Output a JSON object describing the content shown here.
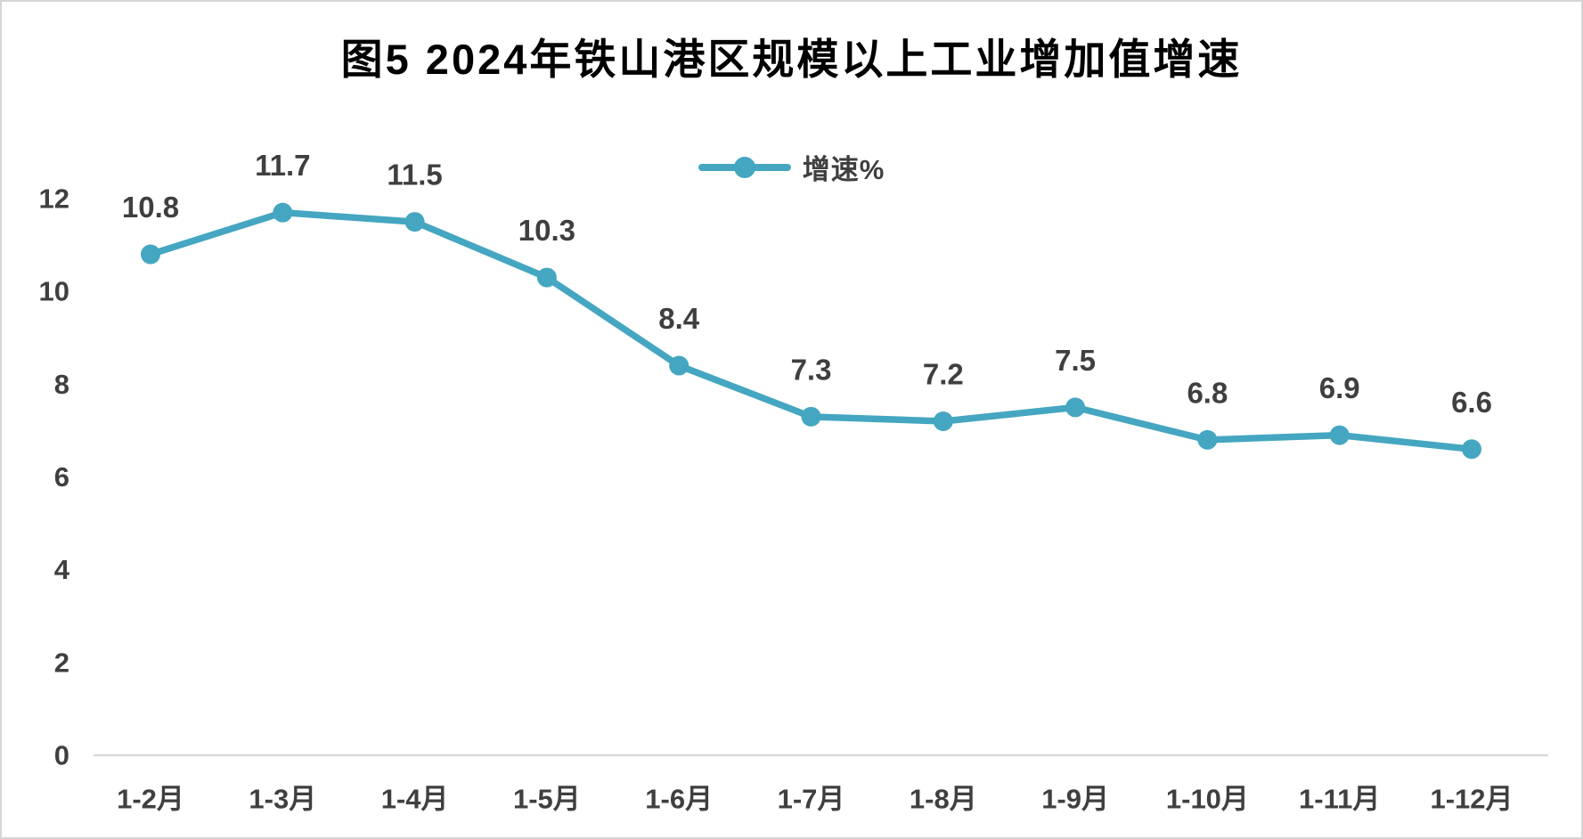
{
  "chart_data": {
    "type": "line",
    "title": "图5 2024年铁山港区规模以上工业增加值增速",
    "categories": [
      "1-2月",
      "1-3月",
      "1-4月",
      "1-5月",
      "1-6月",
      "1-7月",
      "1-8月",
      "1-9月",
      "1-10月",
      "1-11月",
      "1-12月"
    ],
    "series": [
      {
        "name": "增速%",
        "values": [
          10.8,
          11.7,
          11.5,
          10.3,
          8.4,
          7.3,
          7.2,
          7.5,
          6.8,
          6.9,
          6.6
        ]
      }
    ],
    "xlabel": "",
    "ylabel": "",
    "ylim": [
      0,
      12.4
    ],
    "yticks": [
      0,
      2,
      4,
      6,
      8,
      10,
      12
    ],
    "grid": false,
    "legend_position": "top-center",
    "data_labels": true,
    "marker": "circle"
  },
  "colors": {
    "line": "#45A6C1",
    "text": "#3F3F3F",
    "title": "#000000",
    "axis_line": "#D9D9D9",
    "frame_border": "#D6D6D6",
    "background": "#FFFFFF"
  }
}
